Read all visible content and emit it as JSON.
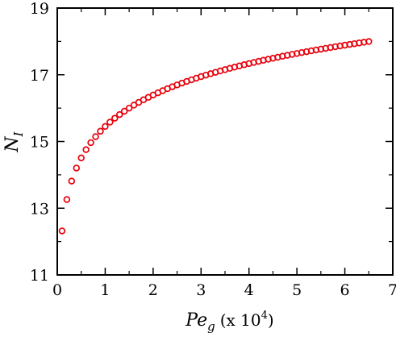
{
  "chart_data": {
    "type": "scatter",
    "xlabel": {
      "main": "Pe",
      "sub": "g",
      "unit_prefix": "(x 10",
      "unit_exp": "4",
      "unit_suffix": ")"
    },
    "ylabel": {
      "main": "N",
      "sub": "I"
    },
    "xlim": [
      0,
      7
    ],
    "ylim": [
      11,
      19
    ],
    "xticks": [
      0,
      1,
      2,
      3,
      4,
      5,
      6,
      7
    ],
    "yticks": [
      11,
      13,
      15,
      17,
      19
    ],
    "xtick_labels": [
      "0",
      "1",
      "2",
      "3",
      "4",
      "5",
      "6",
      "7"
    ],
    "ytick_labels": [
      "11",
      "13",
      "15",
      "17",
      "19"
    ],
    "marker": {
      "shape": "open-circle",
      "color": "#e8000b"
    },
    "grid": false,
    "legend": "none",
    "curve_model": {
      "form": "y = a + b*ln(x)",
      "a": 15.45,
      "b": 1.36,
      "x_start": 0.1,
      "x_step": 0.1,
      "count": 65
    }
  }
}
